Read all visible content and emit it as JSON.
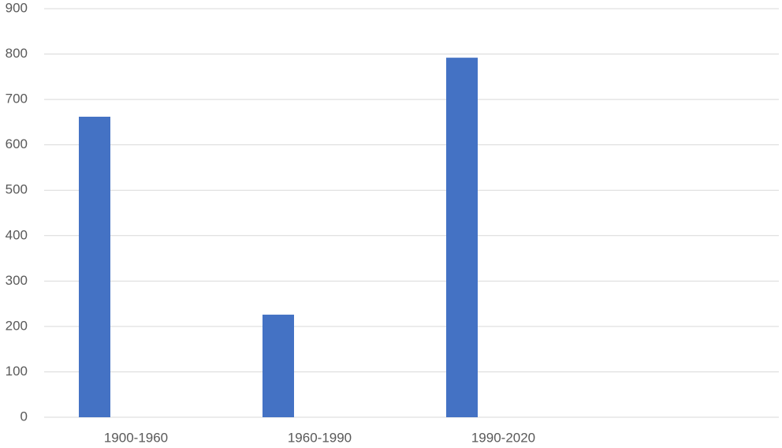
{
  "chart_data": {
    "type": "bar",
    "categories": [
      "1900-1960",
      "1960-1990",
      "1990-2020",
      null
    ],
    "values": [
      662,
      226,
      792,
      null
    ],
    "color": "#4472c4",
    "ylim": [
      0,
      900
    ],
    "yticks": [
      0,
      100,
      200,
      300,
      400,
      500,
      600,
      700,
      800,
      900
    ],
    "grid": true
  }
}
